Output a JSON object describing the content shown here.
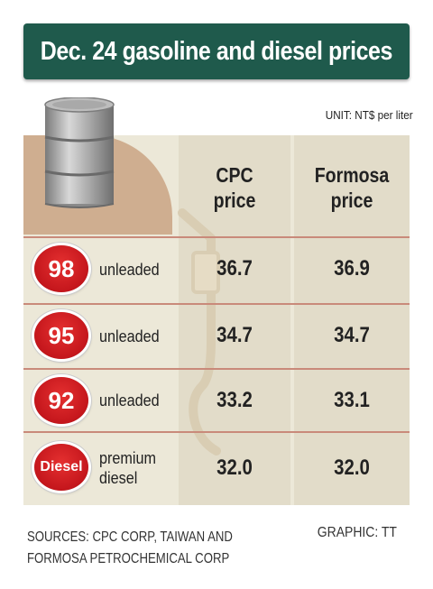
{
  "title": "Dec. 24 gasoline and diesel prices",
  "unit": "UNIT: NT$ per liter",
  "headers": {
    "cpc": [
      "CPC",
      "price"
    ],
    "formosa": [
      "Formosa",
      "price"
    ]
  },
  "rows": [
    {
      "badge": "98",
      "fuel": [
        "unleaded"
      ],
      "cpc": "36.7",
      "formosa": "36.9"
    },
    {
      "badge": "95",
      "fuel": [
        "unleaded"
      ],
      "cpc": "34.7",
      "formosa": "34.7"
    },
    {
      "badge": "92",
      "fuel": [
        "unleaded"
      ],
      "cpc": "33.2",
      "formosa": "33.1"
    },
    {
      "badge": "Diesel",
      "fuel": [
        "premium",
        "diesel"
      ],
      "cpc": "32.0",
      "formosa": "32.0"
    }
  ],
  "sources": [
    "SOURCES: CPC CORP, TAIWAN AND",
    "FORMOSA PETROCHEMICAL CORP"
  ],
  "credit": "GRAPHIC: TT",
  "colors": {
    "title_bg": "#1f5a4c",
    "badge": "#c4161c",
    "panel": "#ece8d8",
    "tan": "#cfae90"
  }
}
